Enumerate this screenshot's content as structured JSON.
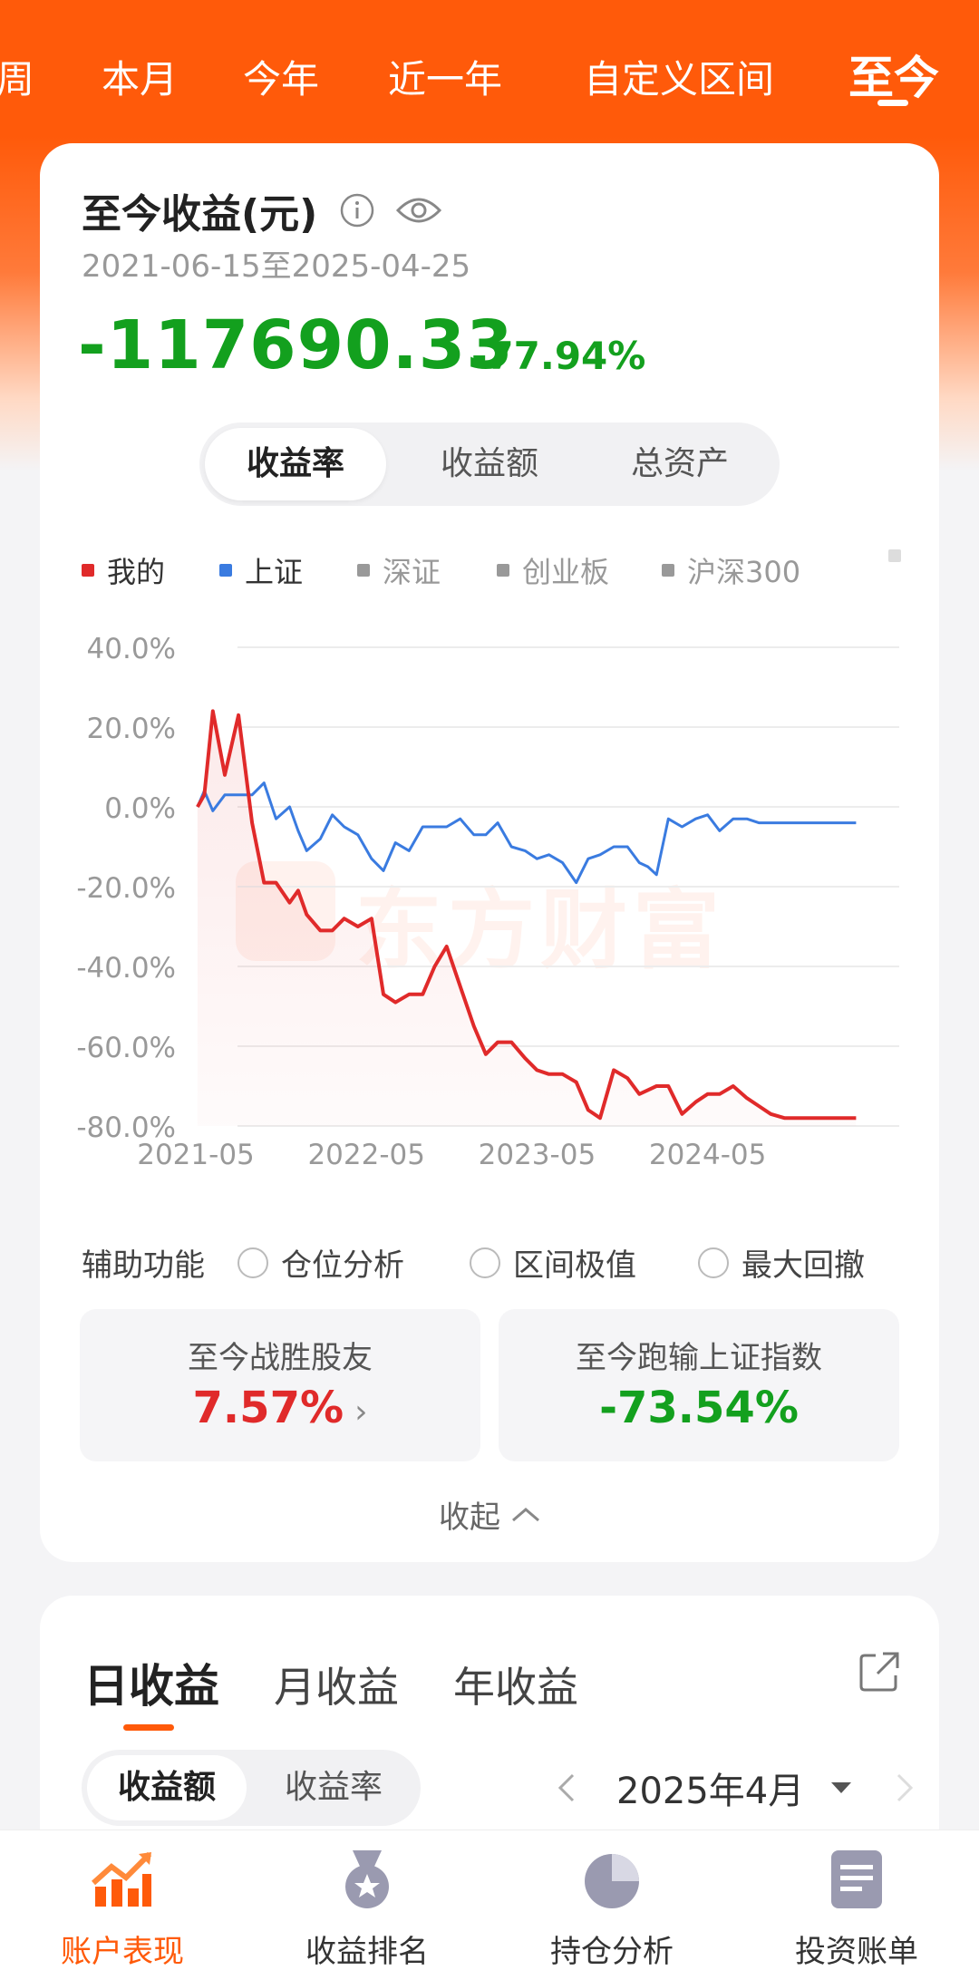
{
  "period_tabs": {
    "items": [
      "周",
      "本月",
      "今年",
      "近一年",
      "自定义区间",
      "至今"
    ],
    "active": "至今"
  },
  "summary": {
    "title": "至今收益(元)",
    "date_range": "2021-06-15至2025-04-25",
    "amount": "-117690.33",
    "percent": "-77.94%"
  },
  "metric_toggle": {
    "items": [
      "收益率",
      "收益额",
      "总资产"
    ],
    "active": "收益率"
  },
  "legend": [
    {
      "label": "我的",
      "color": "#e02a2a",
      "active": true
    },
    {
      "label": "上证",
      "color": "#3a7be0",
      "active": true
    },
    {
      "label": "深证",
      "color": "#999999",
      "active": false
    },
    {
      "label": "创业板",
      "color": "#999999",
      "active": false
    },
    {
      "label": "沪深300",
      "color": "#999999",
      "active": false
    }
  ],
  "watermark": "东方财富",
  "chart_data": {
    "type": "line",
    "y_tick_labels": [
      "40.0%",
      "20.0%",
      "0.0%",
      "-20.0%",
      "-40.0%",
      "-60.0%",
      "-80.0%"
    ],
    "x_tick_labels": [
      "2021-05",
      "2022-05",
      "2023-05",
      "2024-05"
    ],
    "ylim": [
      -80,
      40
    ],
    "x_range": [
      2021.45,
      2025.35
    ],
    "x": [
      2021.46,
      2021.5,
      2021.55,
      2021.62,
      2021.7,
      2021.78,
      2021.85,
      2021.92,
      2022.0,
      2022.05,
      2022.1,
      2022.18,
      2022.25,
      2022.32,
      2022.4,
      2022.48,
      2022.55,
      2022.62,
      2022.7,
      2022.78,
      2022.85,
      2022.92,
      2023.0,
      2023.08,
      2023.15,
      2023.22,
      2023.3,
      2023.38,
      2023.45,
      2023.52,
      2023.6,
      2023.68,
      2023.75,
      2023.82,
      2023.9,
      2023.98,
      2024.05,
      2024.1,
      2024.15,
      2024.22,
      2024.3,
      2024.38,
      2024.45,
      2024.52,
      2024.6,
      2024.68,
      2024.75,
      2024.82,
      2024.9,
      2024.98,
      2025.05,
      2025.12,
      2025.2,
      2025.27,
      2025.32
    ],
    "series": [
      {
        "name": "我的",
        "color": "#e02a2a",
        "values": [
          0,
          3,
          24,
          8,
          23,
          -4,
          -19,
          -19,
          -24,
          -21,
          -27,
          -31,
          -31,
          -28,
          -30,
          -28,
          -47,
          -49,
          -47,
          -47,
          -40,
          -35,
          -45,
          -55,
          -62,
          -59,
          -59,
          -63,
          -66,
          -67,
          -67,
          -69,
          -76,
          -78,
          -66,
          -68,
          -72,
          -71,
          -70,
          -70,
          -77,
          -74,
          -72,
          -72,
          -70,
          -73,
          -75,
          -77,
          -78,
          -78,
          -78,
          -78,
          -78,
          -78,
          -78
        ]
      },
      {
        "name": "上证",
        "color": "#3a7be0",
        "values": [
          0,
          4,
          -1,
          3,
          3,
          3,
          6,
          -3,
          0,
          -6,
          -11,
          -8,
          -2,
          -5,
          -7,
          -13,
          -16,
          -9,
          -11,
          -5,
          -5,
          -5,
          -3,
          -7,
          -7,
          -4,
          -10,
          -11,
          -13,
          -12,
          -14,
          -19,
          -13,
          -12,
          -10,
          -10,
          -14,
          -15,
          -17,
          -3,
          -5,
          -3,
          -2,
          -6,
          -3,
          -3,
          -4,
          -4,
          -4,
          -4,
          -4,
          -4,
          -4,
          -4,
          -4
        ]
      }
    ]
  },
  "aux": {
    "label": "辅助功能",
    "options": [
      "仓位分析",
      "区间极值",
      "最大回撤"
    ]
  },
  "stats": [
    {
      "title": "至今战胜股友",
      "value": "7.57%",
      "color": "red",
      "has_arrow": true
    },
    {
      "title": "至今跑输上证指数",
      "value": "-73.54%",
      "color": "green",
      "has_arrow": false
    }
  ],
  "collapse_label": "收起",
  "earnings": {
    "tabs": [
      "日收益",
      "月收益",
      "年收益"
    ],
    "active": "日收益",
    "toggle": [
      "收益额",
      "收益率"
    ],
    "toggle_active": "收益额",
    "month": "2025年4月"
  },
  "bottom_nav": [
    {
      "label": "账户表现",
      "icon": "chart-trend-icon",
      "active": true
    },
    {
      "label": "收益排名",
      "icon": "medal-icon",
      "active": false
    },
    {
      "label": "持仓分析",
      "icon": "pie-chart-icon",
      "active": false
    },
    {
      "label": "投资账单",
      "icon": "bill-icon",
      "active": false
    }
  ]
}
